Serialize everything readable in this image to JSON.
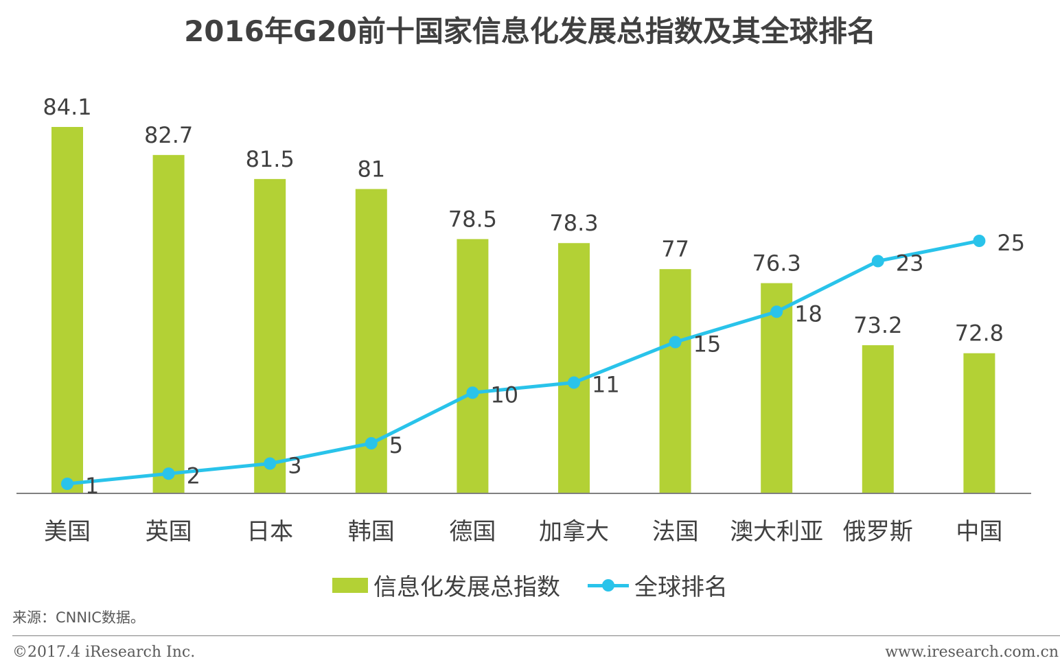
{
  "chart_data": {
    "type": "bar",
    "title": "2016年G20前十国家信息化发展总指数及其全球排名",
    "categories": [
      "美国",
      "英国",
      "日本",
      "韩国",
      "德国",
      "加拿大",
      "法国",
      "澳大利亚",
      "俄罗斯",
      "中国"
    ],
    "series": [
      {
        "name": "信息化发展总指数",
        "type": "bar",
        "color": "#b3d135",
        "values": [
          84.1,
          82.7,
          81.5,
          81,
          78.5,
          78.3,
          77,
          76.3,
          73.2,
          72.8
        ],
        "labels": [
          "84.1",
          "82.7",
          "81.5",
          "81",
          "78.5",
          "78.3",
          "77",
          "76.3",
          "73.2",
          "72.8"
        ]
      },
      {
        "name": "全球排名",
        "type": "line",
        "color": "#29c3ea",
        "values": [
          1,
          2,
          3,
          5,
          10,
          11,
          15,
          18,
          23,
          25
        ],
        "labels": [
          "1",
          "2",
          "3",
          "5",
          "10",
          "11",
          "15",
          "18",
          "23",
          "25"
        ]
      }
    ],
    "bar_axis_range": [
      65.8,
      84.1
    ],
    "line_axis_range": [
      0,
      25
    ],
    "legend_position": "bottom",
    "grid": false
  },
  "source_note": "来源：CNNIC数据。",
  "copyright": "©2017.4 iResearch Inc.",
  "site_url": "www.iresearch.com.cn"
}
